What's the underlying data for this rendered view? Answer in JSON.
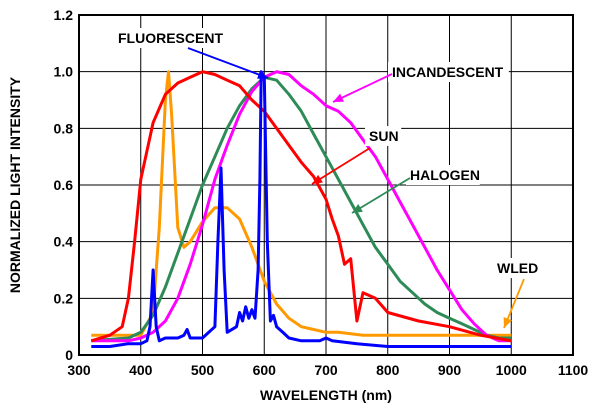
{
  "chart_data": {
    "type": "line",
    "title": "",
    "xlabel": "WAVELENGTH (nm)",
    "ylabel": "NORMALIZED LIGHT INTENSITY",
    "xlim": [
      300,
      1100
    ],
    "ylim": [
      0,
      1.2
    ],
    "x_ticks": [
      "300",
      "400",
      "500",
      "600",
      "700",
      "800",
      "900",
      "1000",
      "1100"
    ],
    "y_ticks": [
      "0",
      "0.2",
      "0.4",
      "0.6",
      "0.8",
      "1.0",
      "1.2"
    ],
    "grid": true,
    "legend": "none",
    "series": [
      {
        "name": "FLUORESCENT",
        "color": "#0000ff",
        "x": [
          320,
          350,
          380,
          400,
          410,
          415,
          420,
          425,
          430,
          440,
          460,
          470,
          475,
          480,
          500,
          520,
          525,
          530,
          535,
          540,
          555,
          560,
          565,
          570,
          575,
          580,
          585,
          590,
          593,
          595,
          600,
          605,
          610,
          615,
          620,
          630,
          640,
          660,
          690,
          700,
          710,
          750,
          800,
          900,
          1000
        ],
        "y": [
          0.03,
          0.03,
          0.04,
          0.04,
          0.05,
          0.1,
          0.3,
          0.1,
          0.05,
          0.06,
          0.06,
          0.07,
          0.09,
          0.06,
          0.06,
          0.1,
          0.4,
          0.66,
          0.3,
          0.08,
          0.1,
          0.15,
          0.12,
          0.17,
          0.13,
          0.16,
          0.13,
          0.3,
          0.62,
          1.0,
          0.98,
          0.4,
          0.12,
          0.14,
          0.1,
          0.08,
          0.06,
          0.05,
          0.05,
          0.06,
          0.05,
          0.04,
          0.03,
          0.03,
          0.03
        ]
      },
      {
        "name": "INCANDESCENT",
        "color": "#ff00ff",
        "x": [
          320,
          380,
          400,
          420,
          440,
          460,
          480,
          500,
          520,
          540,
          560,
          580,
          600,
          620,
          640,
          660,
          680,
          700,
          720,
          740,
          760,
          780,
          800,
          820,
          840,
          860,
          880,
          900,
          920,
          940,
          960,
          980,
          1000
        ],
        "y": [
          0.05,
          0.05,
          0.06,
          0.08,
          0.12,
          0.2,
          0.32,
          0.46,
          0.62,
          0.74,
          0.85,
          0.93,
          0.98,
          1.0,
          0.99,
          0.95,
          0.92,
          0.88,
          0.86,
          0.82,
          0.76,
          0.7,
          0.62,
          0.54,
          0.46,
          0.38,
          0.3,
          0.23,
          0.16,
          0.11,
          0.07,
          0.05,
          0.05
        ]
      },
      {
        "name": "SUN",
        "color": "#ff0000",
        "x": [
          320,
          350,
          370,
          380,
          390,
          400,
          420,
          440,
          460,
          480,
          500,
          520,
          540,
          560,
          580,
          600,
          620,
          640,
          660,
          680,
          700,
          710,
          720,
          730,
          740,
          750,
          760,
          780,
          800,
          850,
          900,
          950,
          1000
        ],
        "y": [
          0.05,
          0.07,
          0.1,
          0.2,
          0.4,
          0.62,
          0.82,
          0.92,
          0.96,
          0.98,
          1.0,
          0.99,
          0.97,
          0.95,
          0.9,
          0.86,
          0.8,
          0.74,
          0.68,
          0.63,
          0.55,
          0.48,
          0.42,
          0.32,
          0.34,
          0.12,
          0.22,
          0.2,
          0.15,
          0.12,
          0.1,
          0.07,
          0.05
        ]
      },
      {
        "name": "HALOGEN",
        "color": "#2e8b57",
        "x": [
          320,
          380,
          400,
          420,
          440,
          460,
          480,
          500,
          520,
          540,
          560,
          580,
          600,
          620,
          640,
          660,
          680,
          700,
          720,
          740,
          760,
          780,
          800,
          820,
          840,
          860,
          880,
          900,
          920,
          940,
          960,
          980,
          1000
        ],
        "y": [
          0.05,
          0.06,
          0.08,
          0.14,
          0.24,
          0.36,
          0.48,
          0.6,
          0.7,
          0.8,
          0.88,
          0.94,
          0.98,
          0.97,
          0.92,
          0.86,
          0.78,
          0.7,
          0.62,
          0.54,
          0.46,
          0.38,
          0.32,
          0.26,
          0.22,
          0.18,
          0.15,
          0.13,
          0.11,
          0.09,
          0.07,
          0.06,
          0.06
        ]
      },
      {
        "name": "WLED",
        "color": "#ff9900",
        "x": [
          320,
          400,
          420,
          430,
          440,
          445,
          450,
          460,
          470,
          480,
          500,
          520,
          540,
          560,
          580,
          600,
          620,
          640,
          660,
          680,
          700,
          720,
          760,
          800,
          900,
          1000
        ],
        "y": [
          0.07,
          0.07,
          0.15,
          0.45,
          0.9,
          1.0,
          0.85,
          0.45,
          0.38,
          0.4,
          0.47,
          0.52,
          0.52,
          0.48,
          0.38,
          0.26,
          0.18,
          0.13,
          0.1,
          0.09,
          0.08,
          0.08,
          0.07,
          0.07,
          0.07,
          0.07
        ]
      }
    ],
    "annotations": [
      {
        "text": "FLUORESCENT",
        "series": "FLUORESCENT"
      },
      {
        "text": "INCANDESCENT",
        "series": "INCANDESCENT"
      },
      {
        "text": "SUN",
        "series": "SUN"
      },
      {
        "text": "HALOGEN",
        "series": "HALOGEN"
      },
      {
        "text": "WLED",
        "series": "WLED"
      }
    ]
  }
}
